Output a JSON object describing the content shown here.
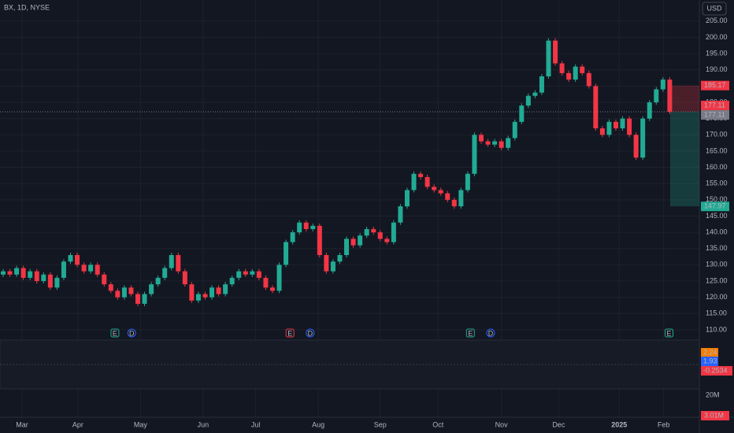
{
  "chart_data": {
    "type": "candlestick",
    "title": "BX, 1D, NYSE",
    "currency": "USD",
    "open": [
      127,
      128,
      127,
      129,
      126,
      128,
      125,
      127,
      123,
      126,
      131,
      133,
      130,
      128,
      130,
      127,
      124,
      122,
      120,
      123,
      121,
      118,
      121,
      124,
      126,
      129,
      133,
      128,
      124,
      119,
      121,
      120,
      123,
      121,
      124,
      126,
      128,
      127,
      128,
      126,
      123,
      122,
      130,
      137,
      140,
      143,
      141,
      142,
      133,
      128,
      131,
      133,
      138,
      136,
      139,
      141,
      140,
      138,
      137,
      143,
      148,
      153,
      158,
      157,
      154,
      153,
      152,
      150,
      148,
      153,
      158,
      170,
      168,
      167,
      168,
      166,
      169,
      174,
      179,
      182,
      183,
      188,
      199,
      192,
      189,
      187,
      191,
      189,
      185,
      172,
      170,
      174,
      172,
      175,
      170,
      163,
      175,
      180,
      184,
      187
    ],
    "close": [
      128,
      127,
      129,
      126,
      128,
      125,
      127,
      123,
      126,
      131,
      133,
      130,
      128,
      130,
      127,
      124,
      122,
      120,
      123,
      121,
      118,
      121,
      124,
      126,
      129,
      133,
      128,
      124,
      119,
      121,
      120,
      123,
      121,
      124,
      126,
      128,
      127,
      128,
      126,
      123,
      122,
      130,
      137,
      140,
      143,
      141,
      142,
      133,
      128,
      131,
      133,
      138,
      136,
      139,
      141,
      140,
      138,
      137,
      143,
      148,
      153,
      158,
      157,
      154,
      153,
      152,
      150,
      148,
      153,
      158,
      170,
      168,
      167,
      168,
      166,
      169,
      174,
      179,
      182,
      183,
      188,
      199,
      192,
      189,
      187,
      191,
      189,
      185,
      172,
      170,
      174,
      172,
      175,
      170,
      163,
      175,
      180,
      184,
      187,
      177.11
    ],
    "up_color": "#22ab94",
    "down_color": "#f23645",
    "xlim": [
      -0.47,
      103.4
    ],
    "ylim": [
      107.8,
      211.5
    ],
    "xticks": [
      {
        "value": 2.8,
        "label": "Mar"
      },
      {
        "value": 11.1,
        "label": "Apr"
      },
      {
        "value": 20.4,
        "label": "May"
      },
      {
        "value": 29.7,
        "label": "Jun"
      },
      {
        "value": 37.5,
        "label": "Jul"
      },
      {
        "value": 46.8,
        "label": "Aug"
      },
      {
        "value": 56,
        "label": "Sep"
      },
      {
        "value": 64.6,
        "label": "Oct"
      },
      {
        "value": 74,
        "label": "Nov"
      },
      {
        "value": 82.5,
        "label": "Dec"
      },
      {
        "value": 91.5,
        "label": "2025"
      },
      {
        "value": 98.1,
        "label": "Feb"
      }
    ],
    "yticks": [
      {
        "value": 205,
        "label": "205.00"
      },
      {
        "value": 200,
        "label": "200.00"
      },
      {
        "value": 195,
        "label": "195.00"
      },
      {
        "value": 190,
        "label": "190.00"
      },
      {
        "value": 185,
        "label": "185.00"
      },
      {
        "value": 180,
        "label": "180.00"
      },
      {
        "value": 175,
        "label": "175.00"
      },
      {
        "value": 170,
        "label": "170.00"
      },
      {
        "value": 165,
        "label": "165.00"
      },
      {
        "value": 160,
        "label": "160.00"
      },
      {
        "value": 155,
        "label": "155.00"
      },
      {
        "value": 150,
        "label": "150.00"
      },
      {
        "value": 145,
        "label": "145.00"
      },
      {
        "value": 140,
        "label": "140.00"
      },
      {
        "value": 135,
        "label": "135.00"
      },
      {
        "value": 130,
        "label": "130.00"
      },
      {
        "value": 125,
        "label": "125.00"
      },
      {
        "value": 120,
        "label": "120.00"
      },
      {
        "value": 115,
        "label": "115.00"
      },
      {
        "value": 110,
        "label": "110.00"
      }
    ],
    "grid": true,
    "price_labels": [
      185.17,
      177.11,
      177.11,
      147.97
    ],
    "price_label_colors": [
      "#f23645",
      "#f23645",
      "#787b86",
      "#22ab94"
    ],
    "events": [
      {
        "x": 16.6,
        "label": "E"
      },
      {
        "x": 19.1,
        "label": "D"
      },
      {
        "x": 42.6,
        "label": "E"
      },
      {
        "x": 45.6,
        "label": "D"
      },
      {
        "x": 69.4,
        "label": "E"
      },
      {
        "x": 72.4,
        "label": "D"
      },
      {
        "x": 98.9,
        "label": "E"
      }
    ],
    "indicator_labels": [
      2.24,
      1.93,
      -0.2534
    ],
    "indicator_label_colors": [
      "#f57c00",
      "#2962ff",
      "#f23645"
    ],
    "volume_labels": [
      {
        "value": 20000000,
        "label": "20M"
      },
      {
        "value": 3010000,
        "label": "3.01M"
      }
    ]
  }
}
